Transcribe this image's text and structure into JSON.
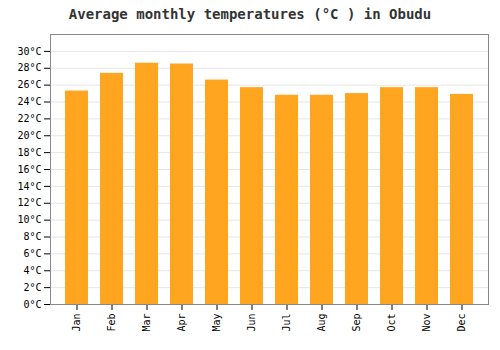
{
  "chart_data": {
    "type": "bar",
    "title": "Average monthly temperatures (°C ) in Obudu",
    "categories": [
      "Jan",
      "Feb",
      "Mar",
      "Apr",
      "May",
      "Jun",
      "Jul",
      "Aug",
      "Sep",
      "Oct",
      "Nov",
      "Dec"
    ],
    "values": [
      25.3,
      27.4,
      28.6,
      28.5,
      26.6,
      25.7,
      24.8,
      24.8,
      25.0,
      25.7,
      25.7,
      24.9
    ],
    "color": "#FFA520",
    "ylim": [
      0,
      32
    ],
    "yticks": [
      {
        "value": 0,
        "label": "0°C"
      },
      {
        "value": 2,
        "label": "2°C"
      },
      {
        "value": 4,
        "label": "4°C"
      },
      {
        "value": 6,
        "label": "6°C"
      },
      {
        "value": 8,
        "label": "8°C"
      },
      {
        "value": 10,
        "label": "10°C"
      },
      {
        "value": 12,
        "label": "12°C"
      },
      {
        "value": 14,
        "label": "14°C"
      },
      {
        "value": 16,
        "label": "16°C"
      },
      {
        "value": 18,
        "label": "18°C"
      },
      {
        "value": 20,
        "label": "20°C"
      },
      {
        "value": 22,
        "label": "22°C"
      },
      {
        "value": 24,
        "label": "24°C"
      },
      {
        "value": 26,
        "label": "26°C"
      },
      {
        "value": 28,
        "label": "28°C"
      },
      {
        "value": 30,
        "label": "30°C"
      }
    ],
    "grid": true
  }
}
